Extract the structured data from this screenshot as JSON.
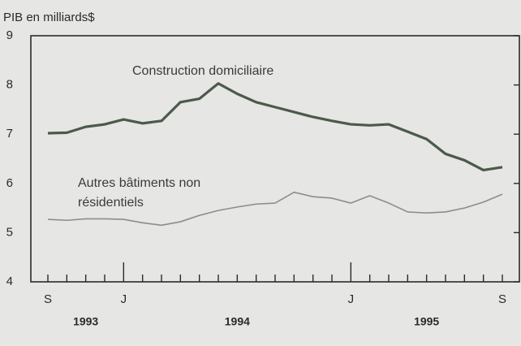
{
  "chart_data": {
    "type": "line",
    "y_label": "PIB en milliards$",
    "categories": [
      "S",
      null,
      null,
      null,
      "J",
      null,
      null,
      null,
      null,
      null,
      null,
      null,
      null,
      null,
      null,
      null,
      "J",
      null,
      null,
      null,
      null,
      null,
      null,
      null,
      "S"
    ],
    "years": [
      "1993",
      "1994",
      "1995"
    ],
    "series": [
      {
        "name": "Construction domiciliaire",
        "color": "#4b5a4b",
        "values": [
          7.02,
          7.03,
          7.15,
          7.2,
          7.3,
          7.22,
          7.27,
          7.65,
          7.72,
          8.03,
          7.82,
          7.65,
          7.55,
          7.45,
          7.35,
          7.27,
          7.2,
          7.18,
          7.2,
          7.05,
          6.9,
          6.6,
          6.47,
          6.27,
          6.33
        ]
      },
      {
        "name": "Autres bâtiments non résidentiels",
        "color": "#8a8f8a",
        "values": [
          5.27,
          5.25,
          5.28,
          5.28,
          5.27,
          5.2,
          5.15,
          5.22,
          5.35,
          5.45,
          5.52,
          5.58,
          5.6,
          5.82,
          5.73,
          5.7,
          5.6,
          5.75,
          5.6,
          5.42,
          5.4,
          5.42,
          5.5,
          5.62,
          5.78
        ]
      }
    ],
    "ylim": [
      4,
      9
    ],
    "yticks": [
      4,
      5,
      6,
      7,
      8,
      9
    ]
  }
}
